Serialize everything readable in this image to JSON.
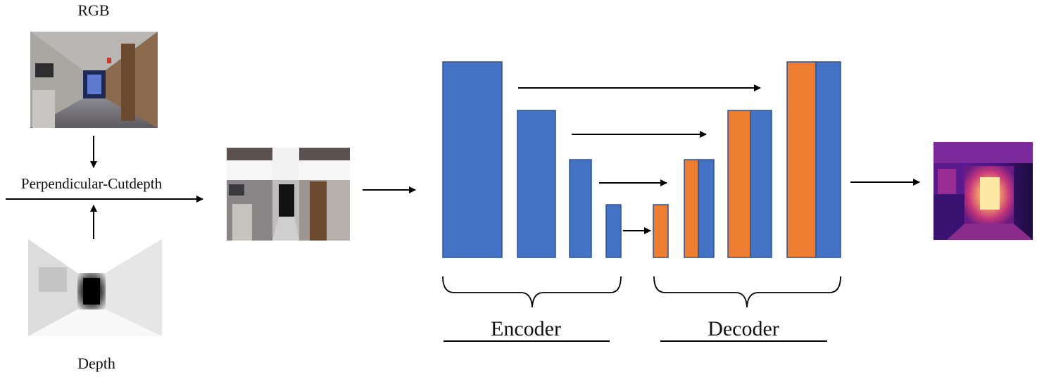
{
  "labels": {
    "rgb": "RGB",
    "depth": "Depth",
    "augmentation": "Perpendicular-Cutdepth",
    "encoder": "Encoder",
    "decoder": "Decoder"
  },
  "colors": {
    "encoder_block": "#4472C4",
    "decoder_block": "#ED7D31",
    "arrow": "#000000"
  },
  "icons": {
    "rgb_image": "corridor-photo",
    "depth_image": "grayscale-depth-map",
    "augmented_image": "cutdepth-mixed-image",
    "output_image": "magma-depth-prediction"
  }
}
